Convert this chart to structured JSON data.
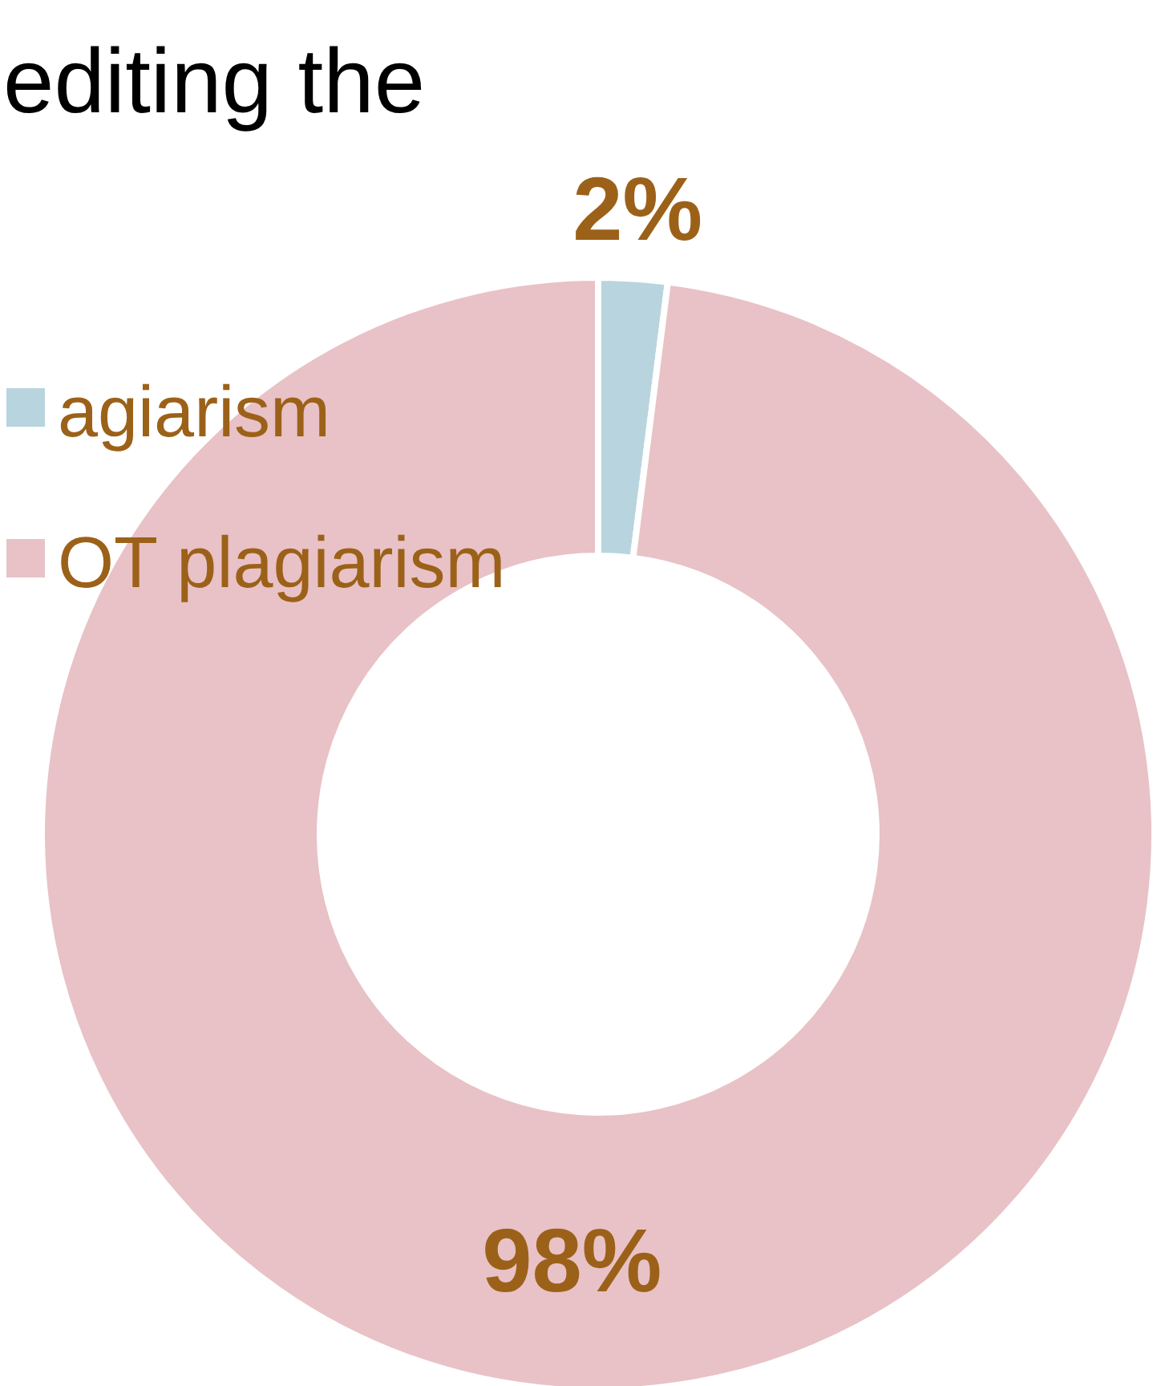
{
  "chart_data": {
    "type": "donut",
    "title": "editing the",
    "categories": [
      "agiarism",
      "OT plagiarism"
    ],
    "values": [
      2,
      98
    ],
    "colors": [
      "#b8d4de",
      "#e8c2c6"
    ],
    "value_labels": [
      "2%",
      "98%"
    ],
    "legend": "top left"
  }
}
